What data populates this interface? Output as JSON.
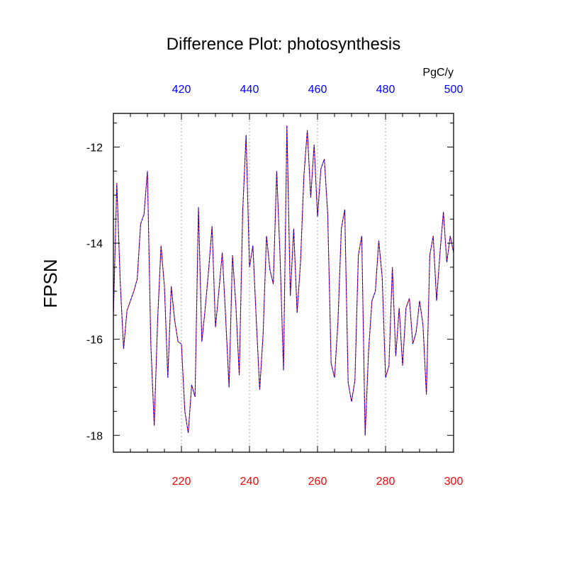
{
  "chart_data": {
    "type": "line",
    "title": "Difference Plot: photosynthesis",
    "ylabel": "FPSN",
    "top_units": "PgC/y",
    "xlim": [
      200,
      300
    ],
    "ylim": [
      -18.35,
      -11.3
    ],
    "grid": "vertical dotted at 220, 240, 260, 280",
    "bottom_axis": {
      "ticks": [
        220,
        240,
        260,
        280,
        300
      ],
      "tick_labels": [
        "220",
        "240",
        "260",
        "280",
        "300"
      ],
      "color": "#ff0000"
    },
    "top_axis": {
      "ticks": [
        220,
        240,
        260,
        280,
        300
      ],
      "tick_labels": [
        "420",
        "440",
        "460",
        "480",
        "500"
      ],
      "color": "#0000ff"
    },
    "y_ticks": [
      -18,
      -16,
      -14,
      -12
    ],
    "y_tick_labels": [
      "-18",
      "-16",
      "-14",
      "-12"
    ],
    "series": [
      {
        "color": "#ff0000",
        "style": "solid",
        "x": [
          200,
          201,
          202,
          203,
          204,
          205,
          206,
          207,
          208,
          209,
          210,
          211,
          212,
          213,
          214,
          215,
          216,
          217,
          218,
          219,
          220,
          221,
          222,
          223,
          224,
          225,
          226,
          227,
          228,
          229,
          230,
          231,
          232,
          233,
          234,
          235,
          236,
          237,
          238,
          239,
          240,
          241,
          242,
          243,
          244,
          245,
          246,
          247,
          248,
          249,
          250,
          251,
          252,
          253,
          254,
          255,
          256,
          257,
          258,
          259,
          260,
          261,
          262,
          263,
          264,
          265,
          266,
          267,
          268,
          269,
          270,
          271,
          272,
          273,
          274,
          275,
          276,
          277,
          278,
          279,
          280,
          281,
          282,
          283,
          284,
          285,
          286,
          287,
          288,
          289,
          290,
          291,
          292,
          293,
          294,
          295,
          296,
          297,
          298,
          299,
          300
        ],
        "values": [
          -15.5,
          -12.75,
          -14.8,
          -16.2,
          -15.4,
          -15.2,
          -15.0,
          -14.75,
          -13.6,
          -13.4,
          -12.5,
          -16.1,
          -17.8,
          -15.6,
          -14.05,
          -14.9,
          -16.8,
          -14.9,
          -15.6,
          -16.05,
          -16.1,
          -17.5,
          -17.95,
          -16.95,
          -17.2,
          -13.25,
          -16.05,
          -15.35,
          -14.55,
          -13.65,
          -15.75,
          -15.0,
          -14.2,
          -15.55,
          -17.0,
          -14.25,
          -15.3,
          -16.75,
          -13.35,
          -11.75,
          -14.5,
          -14.05,
          -15.6,
          -17.05,
          -15.9,
          -13.85,
          -14.55,
          -14.85,
          -12.5,
          -14.3,
          -16.65,
          -11.55,
          -15.1,
          -13.7,
          -15.45,
          -14.4,
          -12.6,
          -11.65,
          -13.05,
          -11.95,
          -13.45,
          -12.45,
          -12.25,
          -13.4,
          -16.5,
          -16.8,
          -15.65,
          -13.7,
          -13.3,
          -16.9,
          -17.3,
          -16.85,
          -14.25,
          -13.85,
          -18.0,
          -16.25,
          -15.2,
          -15.0,
          -13.95,
          -14.7,
          -16.8,
          -16.55,
          -14.5,
          -16.35,
          -15.35,
          -16.55,
          -15.35,
          -15.15,
          -16.1,
          -15.85,
          -15.2,
          -15.7,
          -17.15,
          -14.25,
          -13.85,
          -15.2,
          -14.2,
          -13.35,
          -14.4,
          -13.85,
          -14.2
        ]
      },
      {
        "color": "#0000ff",
        "style": "dashed",
        "x": [
          200,
          201,
          202,
          203,
          204,
          205,
          206,
          207,
          208,
          209,
          210,
          211,
          212,
          213,
          214,
          215,
          216,
          217,
          218,
          219,
          220,
          221,
          222,
          223,
          224,
          225,
          226,
          227,
          228,
          229,
          230,
          231,
          232,
          233,
          234,
          235,
          236,
          237,
          238,
          239,
          240,
          241,
          242,
          243,
          244,
          245,
          246,
          247,
          248,
          249,
          250,
          251,
          252,
          253,
          254,
          255,
          256,
          257,
          258,
          259,
          260,
          261,
          262,
          263,
          264,
          265,
          266,
          267,
          268,
          269,
          270,
          271,
          272,
          273,
          274,
          275,
          276,
          277,
          278,
          279,
          280,
          281,
          282,
          283,
          284,
          285,
          286,
          287,
          288,
          289,
          290,
          291,
          292,
          293,
          294,
          295,
          296,
          297,
          298,
          299,
          300
        ],
        "values": [
          -15.5,
          -12.75,
          -14.8,
          -16.2,
          -15.4,
          -15.2,
          -15.0,
          -14.75,
          -13.6,
          -13.4,
          -12.5,
          -16.1,
          -17.8,
          -15.6,
          -14.05,
          -14.9,
          -16.8,
          -14.9,
          -15.6,
          -16.05,
          -16.1,
          -17.5,
          -17.95,
          -16.95,
          -17.2,
          -13.25,
          -16.05,
          -15.35,
          -14.55,
          -13.65,
          -15.75,
          -15.0,
          -14.2,
          -15.55,
          -17.0,
          -14.25,
          -15.3,
          -16.75,
          -13.35,
          -11.75,
          -14.5,
          -14.05,
          -15.6,
          -17.05,
          -15.9,
          -13.85,
          -14.55,
          -14.85,
          -12.5,
          -14.3,
          -16.65,
          -11.55,
          -15.1,
          -13.7,
          -15.45,
          -14.4,
          -12.6,
          -11.65,
          -13.05,
          -11.95,
          -13.45,
          -12.45,
          -12.25,
          -13.4,
          -16.5,
          -16.8,
          -15.65,
          -13.7,
          -13.3,
          -16.9,
          -17.3,
          -16.85,
          -14.25,
          -13.85,
          -18.0,
          -16.25,
          -15.2,
          -15.0,
          -13.95,
          -14.7,
          -16.8,
          -16.55,
          -14.5,
          -16.35,
          -15.35,
          -16.55,
          -15.35,
          -15.15,
          -16.1,
          -15.85,
          -15.2,
          -15.7,
          -17.15,
          -14.25,
          -13.85,
          -15.2,
          -14.2,
          -13.35,
          -14.4,
          -13.85,
          -14.2
        ]
      }
    ]
  }
}
